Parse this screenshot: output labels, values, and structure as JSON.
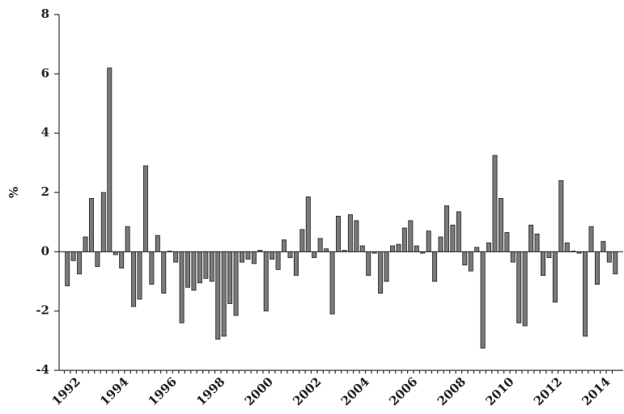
{
  "chart_data": {
    "type": "bar",
    "y_label": "%",
    "categories": [
      "1992",
      null,
      null,
      null,
      null,
      null,
      null,
      null,
      "1994",
      null,
      null,
      null,
      null,
      null,
      null,
      null,
      "1996",
      null,
      null,
      null,
      null,
      null,
      null,
      null,
      "1998",
      null,
      null,
      null,
      null,
      null,
      null,
      null,
      "2000",
      null,
      null,
      null,
      null,
      null,
      null,
      null,
      "2002",
      null,
      null,
      null,
      null,
      null,
      null,
      null,
      "2004",
      null,
      null,
      null,
      null,
      null,
      null,
      null,
      "2006",
      null,
      null,
      null,
      null,
      null,
      null,
      null,
      "2008",
      null,
      null,
      null,
      null,
      null,
      null,
      null,
      "2010",
      null,
      null,
      null,
      null,
      null,
      null,
      null,
      "2012",
      null,
      null,
      null,
      null,
      null,
      null,
      null,
      "2014",
      null,
      null,
      null
    ],
    "values": [
      -1.15,
      -0.3,
      -0.75,
      0.5,
      1.8,
      -0.5,
      2.0,
      6.2,
      -0.1,
      -0.55,
      0.85,
      -1.85,
      -1.6,
      2.9,
      -1.1,
      0.55,
      -1.4,
      0.02,
      -0.35,
      -2.4,
      -1.2,
      -1.3,
      -1.05,
      -0.9,
      -1.0,
      -2.95,
      -2.85,
      -1.75,
      -2.15,
      -0.35,
      -0.25,
      -0.4,
      0.05,
      -2.0,
      -0.25,
      -0.6,
      0.4,
      -0.2,
      -0.8,
      0.75,
      1.85,
      -0.2,
      0.45,
      0.1,
      -2.1,
      1.2,
      0.05,
      1.25,
      1.05,
      0.2,
      -0.8,
      -0.05,
      -1.4,
      -1.0,
      0.2,
      0.25,
      0.8,
      1.05,
      0.2,
      -0.05,
      0.7,
      -1.0,
      0.5,
      1.55,
      0.9,
      1.35,
      -0.45,
      -0.65,
      0.15,
      -3.25,
      0.3,
      3.25,
      1.8,
      0.65,
      -0.35,
      -2.4,
      -2.5,
      0.9,
      0.6,
      -0.8,
      -0.2,
      -1.7,
      2.4,
      0.3,
      0.02,
      -0.05,
      -2.85,
      0.85,
      -1.1,
      0.35,
      -0.35,
      -0.75
    ],
    "color": "#7a7a7a",
    "ylim": [
      -4,
      8
    ],
    "yticks": [
      -4,
      -2,
      0,
      2,
      4,
      6,
      8
    ]
  }
}
